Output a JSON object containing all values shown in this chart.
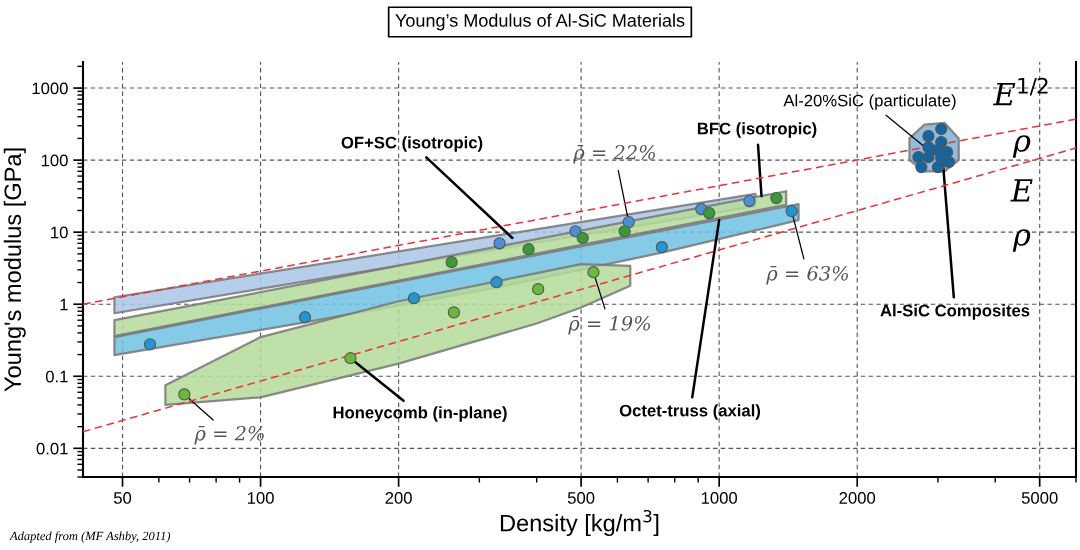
{
  "chart_data": {
    "type": "scatter",
    "title": "Young’s Modulus of Al-SiC Materials",
    "xlabel": "Density [kg/m$^{3}$]",
    "ylabel": "Young's modulus [GPa]",
    "log": "xy",
    "xlim": [
      41,
      6000
    ],
    "ylim": [
      0.004,
      2300
    ],
    "xticks": [
      50,
      100,
      200,
      500,
      1000,
      2000,
      5000
    ],
    "yticks": [
      0.01,
      0.1,
      1,
      10,
      100,
      1000
    ],
    "grid": true,
    "marker": "circle",
    "series": [
      {
        "type": "line",
        "color": "#a9c5e6",
        "x": [
          48,
          1200
        ],
        "values": [
          null,
          null
        ],
        "lower": [
          0.75,
          23
        ],
        "upper": [
          1.25,
          34
        ]
      },
      {
        "type": "line",
        "color": "#b4dc9a",
        "x": [
          48,
          1400
        ],
        "values": [
          null,
          null
        ],
        "lower": [
          0.36,
          24
        ],
        "upper": [
          0.6,
          37
        ]
      },
      {
        "type": "line",
        "color": "#70c2e4",
        "x": [
          48,
          125,
          327,
          750,
          1490
        ],
        "values": [
          null,
          null,
          null,
          null,
          null
        ],
        "lower": [
          0.196,
          0.56,
          1.7,
          5.2,
          14.7
        ],
        "upper": [
          0.35,
          1.15,
          3.76,
          10.5,
          24.5
        ]
      },
      {
        "type": "line",
        "color": "#b4dc9a",
        "x": [
          62,
          100,
          200,
          400,
          500,
          640
        ],
        "values": [
          null,
          null,
          null,
          null,
          null,
          null
        ],
        "lower": [
          0.04,
          0.051,
          0.15,
          0.54,
          0.9,
          1.8
        ],
        "upper": [
          0.075,
          0.35,
          1.1,
          2.7,
          3.6,
          3.4
        ]
      },
      {
        "type": "line",
        "color": "#7fb0d2",
        "x": [
          2600,
          2800,
          3100,
          3330
        ],
        "values": [
          null,
          null,
          null,
          null
        ],
        "lower": [
          100,
          70,
          70,
          100
        ],
        "upper": [
          200,
          310,
          330,
          200
        ]
      },
      {
        "type": "line",
        "color": "#e8343a",
        "line_style": "dashed",
        "marker": "none",
        "x": [
          41,
          6000
        ],
        "values": [
          1.0,
          370
        ]
      },
      {
        "type": "line",
        "color": "#e8343a",
        "line_style": "dashed",
        "marker": "none",
        "x": [
          41,
          6000
        ],
        "values": [
          0.017,
          147
        ]
      },
      {
        "color": "#4a8fd6",
        "x": [
          332,
          486,
          635,
          914,
          1164
        ],
        "values": [
          7.0,
          10.3,
          13.8,
          20.9,
          27.0
        ]
      },
      {
        "color": "#3a9a3a",
        "x": [
          261,
          384,
          504,
          622,
          951,
          1333
        ],
        "values": [
          3.83,
          5.8,
          8.3,
          10.3,
          18.4,
          29.7
        ]
      },
      {
        "color": "#2196d3",
        "x": [
          57.4,
          125,
          216,
          327,
          750,
          1439
        ],
        "values": [
          0.278,
          0.66,
          1.21,
          2.02,
          6.19,
          19.6
        ]
      },
      {
        "color": "#6ab83c",
        "x": [
          68.2,
          157,
          264,
          403,
          532
        ],
        "values": [
          0.056,
          0.178,
          0.77,
          1.62,
          2.78
        ]
      },
      {
        "color": "#1565a0",
        "x": [
          3050,
          2860,
          3050,
          2860,
          2990,
          3140,
          2860,
          2720,
          3050,
          3170,
          2760,
          3000
        ],
        "values": [
          270,
          215,
          178,
          151,
          138,
          129,
          110,
          110,
          107,
          94,
          80,
          80
        ]
      }
    ],
    "annotations": [
      {
        "text": "OF+SC (isotropic)",
        "x": 354,
        "y": 8.3
      },
      {
        "text": "BFC (isotropic)",
        "x": 1237,
        "y": 31.6
      },
      {
        "text": "Al-20%SiC (particulate)",
        "x": 2860,
        "y": 138
      },
      {
        "text": "Al-SiC Composites",
        "x": 3050,
        "y": 178
      },
      {
        "text": "Honeycomb (in-plane)",
        "x": 157,
        "y": 0.178
      },
      {
        "text": "Octet-truss (axial)",
        "x": 1000,
        "y": 14.7
      },
      {
        "text": "ρ̄ = 22%",
        "x": 635,
        "y": 13.8
      },
      {
        "text": "ρ̄ = 63%",
        "x": 1439,
        "y": 19.6
      },
      {
        "text": "ρ̄ = 19%",
        "x": 532,
        "y": 2.78
      },
      {
        "text": "ρ̄ = 2%",
        "x": 68.2,
        "y": 0.056
      },
      "E$^{1/2}$",
      "ρ",
      "E",
      "ρ",
      "Adapted from (MF Ashby, 2011)"
    ]
  }
}
